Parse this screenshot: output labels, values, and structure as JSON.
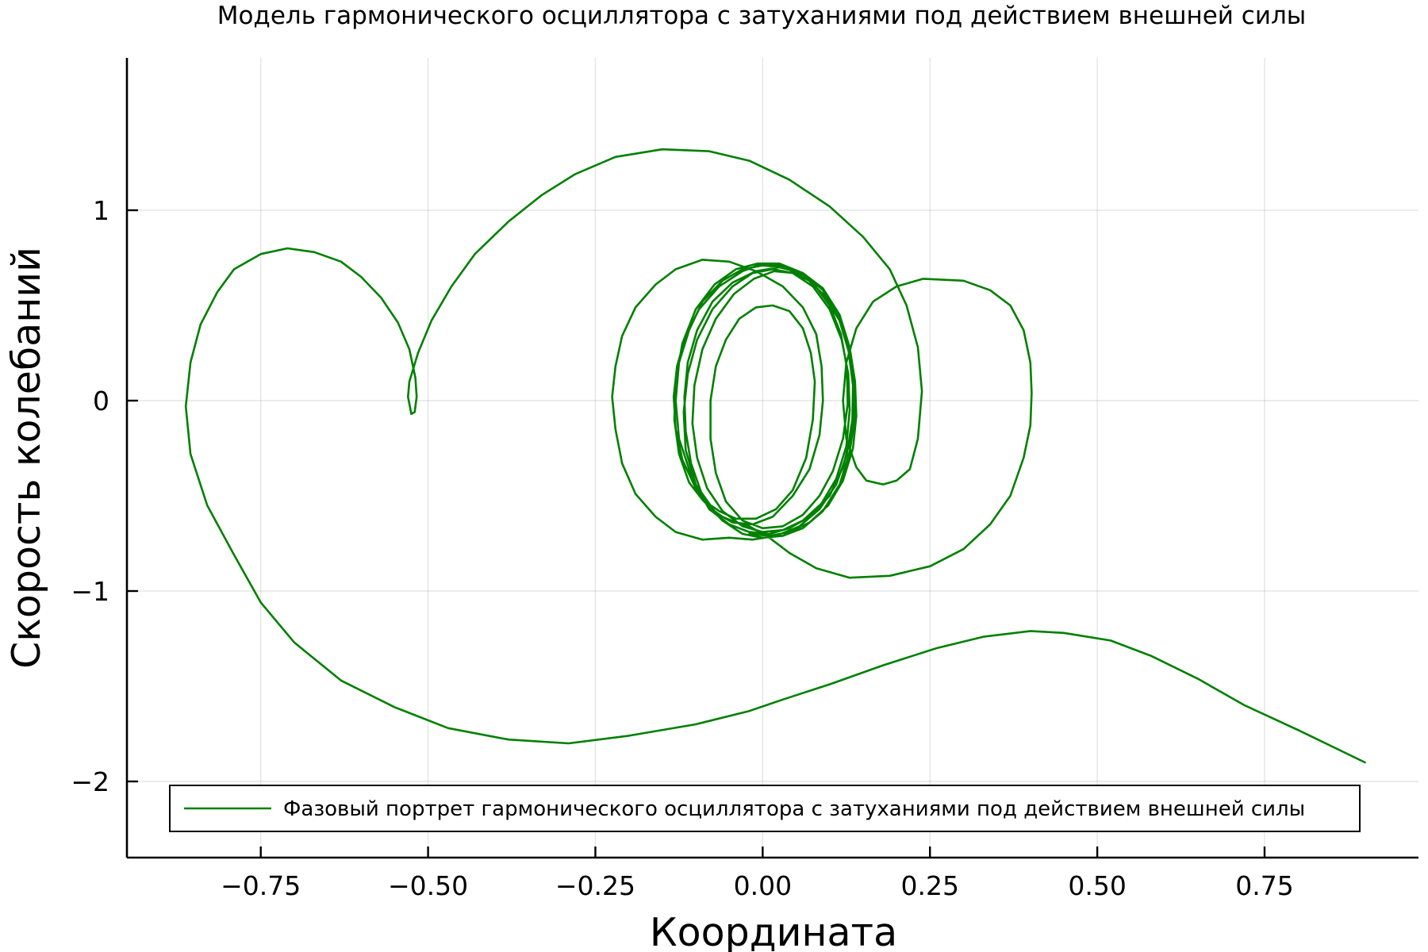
{
  "chart_data": {
    "type": "line",
    "title": "Модель гармонического осциллятора с затуханиями под действием внешней силы",
    "xlabel": "Координата",
    "ylabel": "Скорость колебаний",
    "xlim": [
      -0.95,
      0.98
    ],
    "ylim": [
      -2.4,
      1.8
    ],
    "xticks": [
      -0.75,
      -0.5,
      -0.25,
      0.0,
      0.25,
      0.5,
      0.75
    ],
    "xtick_labels": [
      "−0.75",
      "−0.50",
      "−0.25",
      "0.00",
      "0.25",
      "0.50",
      "0.75"
    ],
    "yticks": [
      -2,
      -1,
      0,
      1
    ],
    "ytick_labels": [
      "−2",
      "−1",
      "0",
      "1"
    ],
    "grid": true,
    "legend_position": "bottom",
    "series": [
      {
        "name": "Фазовый портрет гармонического осциллятора с затуханиями под действием внешней силы",
        "color": "#008000",
        "points": [
          [
            0.9,
            -1.9
          ],
          [
            0.8,
            -1.73
          ],
          [
            0.72,
            -1.6
          ],
          [
            0.65,
            -1.46
          ],
          [
            0.58,
            -1.34
          ],
          [
            0.52,
            -1.26
          ],
          [
            0.45,
            -1.22
          ],
          [
            0.4,
            -1.21
          ],
          [
            0.33,
            -1.24
          ],
          [
            0.26,
            -1.3
          ],
          [
            0.18,
            -1.39
          ],
          [
            0.1,
            -1.49
          ],
          [
            0.03,
            -1.57
          ],
          [
            -0.02,
            -1.63
          ],
          [
            -0.1,
            -1.7
          ],
          [
            -0.2,
            -1.76
          ],
          [
            -0.29,
            -1.8
          ],
          [
            -0.38,
            -1.78
          ],
          [
            -0.47,
            -1.72
          ],
          [
            -0.55,
            -1.61
          ],
          [
            -0.63,
            -1.47
          ],
          [
            -0.7,
            -1.27
          ],
          [
            -0.75,
            -1.06
          ],
          [
            -0.79,
            -0.81
          ],
          [
            -0.83,
            -0.55
          ],
          [
            -0.855,
            -0.28
          ],
          [
            -0.862,
            -0.03
          ],
          [
            -0.855,
            0.2
          ],
          [
            -0.84,
            0.4
          ],
          [
            -0.815,
            0.57
          ],
          [
            -0.79,
            0.69
          ],
          [
            -0.75,
            0.77
          ],
          [
            -0.71,
            0.8
          ],
          [
            -0.67,
            0.78
          ],
          [
            -0.63,
            0.73
          ],
          [
            -0.6,
            0.65
          ],
          [
            -0.57,
            0.54
          ],
          [
            -0.545,
            0.41
          ],
          [
            -0.528,
            0.27
          ],
          [
            -0.519,
            0.12
          ],
          [
            -0.517,
            0.02
          ],
          [
            -0.52,
            -0.06
          ],
          [
            -0.525,
            -0.07
          ],
          [
            -0.53,
            0.02
          ],
          [
            -0.528,
            0.1
          ],
          [
            -0.515,
            0.25
          ],
          [
            -0.495,
            0.42
          ],
          [
            -0.465,
            0.6
          ],
          [
            -0.43,
            0.77
          ],
          [
            -0.38,
            0.94
          ],
          [
            -0.33,
            1.08
          ],
          [
            -0.28,
            1.19
          ],
          [
            -0.22,
            1.28
          ],
          [
            -0.15,
            1.32
          ],
          [
            -0.08,
            1.31
          ],
          [
            -0.02,
            1.26
          ],
          [
            0.04,
            1.16
          ],
          [
            0.1,
            1.02
          ],
          [
            0.15,
            0.86
          ],
          [
            0.19,
            0.69
          ],
          [
            0.215,
            0.5
          ],
          [
            0.232,
            0.28
          ],
          [
            0.238,
            0.05
          ],
          [
            0.232,
            -0.2
          ],
          [
            0.22,
            -0.36
          ],
          [
            0.2,
            -0.42
          ],
          [
            0.18,
            -0.44
          ],
          [
            0.155,
            -0.42
          ],
          [
            0.14,
            -0.35
          ],
          [
            0.125,
            -0.2
          ],
          [
            0.12,
            0.0
          ],
          [
            0.125,
            0.2
          ],
          [
            0.14,
            0.38
          ],
          [
            0.165,
            0.52
          ],
          [
            0.2,
            0.6
          ],
          [
            0.24,
            0.64
          ],
          [
            0.3,
            0.63
          ],
          [
            0.34,
            0.58
          ],
          [
            0.37,
            0.5
          ],
          [
            0.39,
            0.37
          ],
          [
            0.4,
            0.2
          ],
          [
            0.402,
            0.04
          ],
          [
            0.4,
            -0.13
          ],
          [
            0.39,
            -0.3
          ],
          [
            0.37,
            -0.5
          ],
          [
            0.34,
            -0.65
          ],
          [
            0.3,
            -0.78
          ],
          [
            0.25,
            -0.87
          ],
          [
            0.19,
            -0.92
          ],
          [
            0.13,
            -0.93
          ],
          [
            0.08,
            -0.88
          ],
          [
            0.04,
            -0.8
          ],
          [
            0.01,
            -0.72
          ],
          [
            -0.02,
            -0.66
          ],
          [
            -0.04,
            -0.64
          ],
          [
            -0.06,
            -0.61
          ],
          [
            -0.08,
            -0.56
          ],
          [
            -0.1,
            -0.46
          ],
          [
            -0.12,
            -0.31
          ],
          [
            -0.13,
            -0.15
          ],
          [
            -0.133,
            0.02
          ],
          [
            -0.128,
            0.18
          ],
          [
            -0.115,
            0.34
          ],
          [
            -0.095,
            0.48
          ],
          [
            -0.065,
            0.6
          ],
          [
            -0.03,
            0.68
          ],
          [
            0.0,
            0.72
          ],
          [
            0.03,
            0.71
          ],
          [
            0.06,
            0.67
          ],
          [
            0.09,
            0.58
          ],
          [
            0.115,
            0.44
          ],
          [
            0.13,
            0.28
          ],
          [
            0.138,
            0.1
          ],
          [
            0.138,
            -0.08
          ],
          [
            0.13,
            -0.27
          ],
          [
            0.115,
            -0.44
          ],
          [
            0.09,
            -0.58
          ],
          [
            0.06,
            -0.67
          ],
          [
            0.03,
            -0.71
          ],
          [
            0.0,
            -0.72
          ],
          [
            -0.03,
            -0.7
          ],
          [
            -0.06,
            -0.63
          ],
          [
            -0.09,
            -0.52
          ],
          [
            -0.11,
            -0.36
          ],
          [
            -0.125,
            -0.2
          ],
          [
            -0.13,
            0.0
          ],
          [
            -0.125,
            0.2
          ],
          [
            -0.11,
            0.37
          ],
          [
            -0.09,
            0.52
          ],
          [
            -0.06,
            0.63
          ],
          [
            -0.03,
            0.69
          ],
          [
            0.0,
            0.71
          ],
          [
            0.03,
            0.7
          ],
          [
            0.06,
            0.66
          ],
          [
            0.09,
            0.56
          ],
          [
            0.115,
            0.42
          ],
          [
            0.13,
            0.24
          ],
          [
            0.137,
            0.05
          ],
          [
            0.134,
            -0.15
          ],
          [
            0.12,
            -0.35
          ],
          [
            0.1,
            -0.5
          ],
          [
            0.07,
            -0.61
          ],
          [
            0.04,
            -0.67
          ],
          [
            0.01,
            -0.7
          ],
          [
            -0.02,
            -0.69
          ],
          [
            -0.05,
            -0.65
          ],
          [
            -0.08,
            -0.57
          ],
          [
            -0.1,
            -0.44
          ],
          [
            -0.115,
            -0.26
          ],
          [
            -0.118,
            -0.06
          ],
          [
            -0.112,
            0.14
          ],
          [
            -0.098,
            0.32
          ],
          [
            -0.075,
            0.48
          ],
          [
            -0.045,
            0.6
          ],
          [
            -0.015,
            0.67
          ],
          [
            0.015,
            0.69
          ],
          [
            0.045,
            0.67
          ],
          [
            0.075,
            0.6
          ],
          [
            0.1,
            0.48
          ],
          [
            0.118,
            0.32
          ],
          [
            0.128,
            0.14
          ],
          [
            0.13,
            -0.05
          ],
          [
            0.125,
            -0.24
          ],
          [
            0.11,
            -0.41
          ],
          [
            0.088,
            -0.54
          ],
          [
            0.06,
            -0.63
          ],
          [
            0.03,
            -0.68
          ],
          [
            0.0,
            -0.69
          ],
          [
            -0.03,
            -0.66
          ],
          [
            -0.06,
            -0.58
          ],
          [
            -0.083,
            -0.46
          ],
          [
            -0.098,
            -0.3
          ],
          [
            -0.105,
            -0.12
          ],
          [
            -0.102,
            0.08
          ],
          [
            -0.09,
            0.27
          ],
          [
            -0.07,
            0.43
          ],
          [
            -0.043,
            0.56
          ],
          [
            -0.013,
            0.64
          ],
          [
            0.017,
            0.68
          ],
          [
            0.047,
            0.67
          ],
          [
            0.075,
            0.62
          ],
          [
            0.1,
            0.5
          ],
          [
            0.117,
            0.35
          ],
          [
            0.126,
            0.17
          ],
          [
            0.127,
            -0.02
          ],
          [
            0.12,
            -0.2
          ],
          [
            0.105,
            -0.37
          ],
          [
            0.085,
            -0.5
          ],
          [
            0.06,
            -0.6
          ],
          [
            0.03,
            -0.66
          ],
          [
            0.0,
            -0.67
          ],
          [
            -0.03,
            -0.63
          ],
          [
            -0.055,
            -0.53
          ],
          [
            -0.07,
            -0.38
          ],
          [
            -0.078,
            -0.2
          ],
          [
            -0.078,
            0.0
          ],
          [
            -0.07,
            0.18
          ],
          [
            -0.055,
            0.32
          ],
          [
            -0.035,
            0.43
          ],
          [
            -0.01,
            0.49
          ],
          [
            0.015,
            0.5
          ],
          [
            0.04,
            0.47
          ],
          [
            0.06,
            0.38
          ],
          [
            0.072,
            0.25
          ],
          [
            0.078,
            0.1
          ],
          [
            0.075,
            -0.1
          ],
          [
            0.065,
            -0.3
          ],
          [
            0.045,
            -0.47
          ],
          [
            0.02,
            -0.57
          ],
          [
            -0.01,
            -0.62
          ],
          [
            -0.04,
            -0.62
          ],
          [
            -0.065,
            -0.58
          ],
          [
            -0.09,
            -0.52
          ],
          [
            -0.11,
            -0.43
          ],
          [
            -0.125,
            -0.28
          ],
          [
            -0.132,
            -0.1
          ],
          [
            -0.13,
            0.1
          ],
          [
            -0.12,
            0.3
          ],
          [
            -0.1,
            0.48
          ],
          [
            -0.072,
            0.61
          ],
          [
            -0.04,
            0.69
          ],
          [
            -0.008,
            0.72
          ],
          [
            0.025,
            0.72
          ],
          [
            0.06,
            0.67
          ],
          [
            0.09,
            0.58
          ],
          [
            0.113,
            0.44
          ],
          [
            0.128,
            0.27
          ],
          [
            0.135,
            0.08
          ],
          [
            0.134,
            -0.1
          ],
          [
            0.126,
            -0.28
          ],
          [
            0.11,
            -0.44
          ],
          [
            0.085,
            -0.57
          ],
          [
            0.055,
            -0.66
          ],
          [
            0.02,
            -0.71
          ],
          [
            -0.015,
            -0.73
          ],
          [
            -0.05,
            -0.72
          ],
          [
            -0.09,
            -0.73
          ],
          [
            -0.13,
            -0.69
          ],
          [
            -0.16,
            -0.61
          ],
          [
            -0.19,
            -0.49
          ],
          [
            -0.21,
            -0.33
          ],
          [
            -0.22,
            -0.15
          ],
          [
            -0.225,
            0.02
          ],
          [
            -0.22,
            0.18
          ],
          [
            -0.21,
            0.34
          ],
          [
            -0.19,
            0.49
          ],
          [
            -0.16,
            0.61
          ],
          [
            -0.13,
            0.69
          ],
          [
            -0.09,
            0.74
          ],
          [
            -0.05,
            0.73
          ],
          [
            -0.01,
            0.68
          ],
          [
            0.03,
            0.6
          ],
          [
            0.06,
            0.49
          ],
          [
            0.08,
            0.35
          ],
          [
            0.088,
            0.18
          ],
          [
            0.09,
            0.0
          ],
          [
            0.085,
            -0.18
          ],
          [
            0.07,
            -0.36
          ],
          [
            0.045,
            -0.5
          ],
          [
            0.015,
            -0.61
          ],
          [
            -0.015,
            -0.65
          ],
          [
            -0.045,
            -0.64
          ],
          [
            -0.07,
            -0.59
          ],
          [
            -0.092,
            -0.48
          ],
          [
            -0.107,
            -0.33
          ],
          [
            -0.115,
            -0.16
          ],
          [
            -0.117,
            0.02
          ],
          [
            -0.112,
            0.2
          ],
          [
            -0.098,
            0.37
          ],
          [
            -0.075,
            0.52
          ],
          [
            -0.045,
            0.62
          ],
          [
            -0.01,
            0.68
          ],
          [
            0.025,
            0.7
          ],
          [
            0.06,
            0.67
          ],
          [
            0.09,
            0.59
          ],
          [
            0.115,
            0.45
          ],
          [
            0.13,
            0.28
          ],
          [
            0.138,
            0.1
          ],
          [
            0.14,
            -0.08
          ],
          [
            0.135,
            -0.25
          ],
          [
            0.12,
            -0.42
          ],
          [
            0.098,
            -0.55
          ],
          [
            0.07,
            -0.64
          ],
          [
            0.04,
            -0.69
          ],
          [
            0.01,
            -0.71
          ],
          [
            -0.02,
            -0.7
          ]
        ]
      }
    ]
  }
}
